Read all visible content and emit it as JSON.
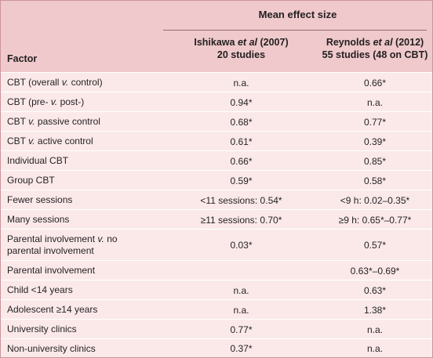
{
  "header": {
    "mean_title": "Mean effect size",
    "factor_label": "Factor",
    "col1_author": "Ishikawa",
    "col1_etal": "et al",
    "col1_year": " (2007)",
    "col1_sub": "20 studies",
    "col2_author": "Reynolds",
    "col2_etal": "et al",
    "col2_year": " (2012)",
    "col2_sub": "55 studies (48 on CBT)"
  },
  "rows": [
    {
      "f_a": "CBT (overall ",
      "f_i": "v.",
      "f_b": " control)",
      "v1": "n.a.",
      "v2": "0.66*"
    },
    {
      "f_a": "CBT (pre- ",
      "f_i": "v.",
      "f_b": " post-)",
      "v1": "0.94*",
      "v2": "n.a."
    },
    {
      "f_a": "CBT ",
      "f_i": "v.",
      "f_b": " passive control",
      "v1": "0.68*",
      "v2": "0.77*"
    },
    {
      "f_a": "CBT ",
      "f_i": "v.",
      "f_b": " active control",
      "v1": "0.61*",
      "v2": "0.39*"
    },
    {
      "f_a": "Individual CBT",
      "f_i": "",
      "f_b": "",
      "v1": "0.66*",
      "v2": "0.85*"
    },
    {
      "f_a": "Group CBT",
      "f_i": "",
      "f_b": "",
      "v1": "0.59*",
      "v2": "0.58*"
    },
    {
      "f_a": "Fewer sessions",
      "f_i": "",
      "f_b": "",
      "v1": "<11 sessions: 0.54*",
      "v2": "<9 h: 0.02–0.35*"
    },
    {
      "f_a": "Many sessions",
      "f_i": "",
      "f_b": "",
      "v1": "≥11 sessions: 0.70*",
      "v2": "≥9 h: 0.65*–0.77*"
    },
    {
      "f_a": "Parental involvement ",
      "f_i": "v.",
      "f_b": " no",
      "f_line2": "parental involvement",
      "v1": "0.03*",
      "v2": "0.57*"
    },
    {
      "f_a": "Parental involvement",
      "f_i": "",
      "f_b": "",
      "v1": "",
      "v2": "0.63*–0.69*"
    },
    {
      "f_a": "Child <14 years",
      "f_i": "",
      "f_b": "",
      "v1": "n.a.",
      "v2": "0.63*"
    },
    {
      "f_a": "Adolescent ≥14 years",
      "f_i": "",
      "f_b": "",
      "v1": "n.a.",
      "v2": "1.38*"
    },
    {
      "f_a": "University clinics",
      "f_i": "",
      "f_b": "",
      "v1": "0.77*",
      "v2": "n.a."
    },
    {
      "f_a": "Non-university clinics",
      "f_i": "",
      "f_b": "",
      "v1": "0.37*",
      "v2": "n.a."
    }
  ]
}
